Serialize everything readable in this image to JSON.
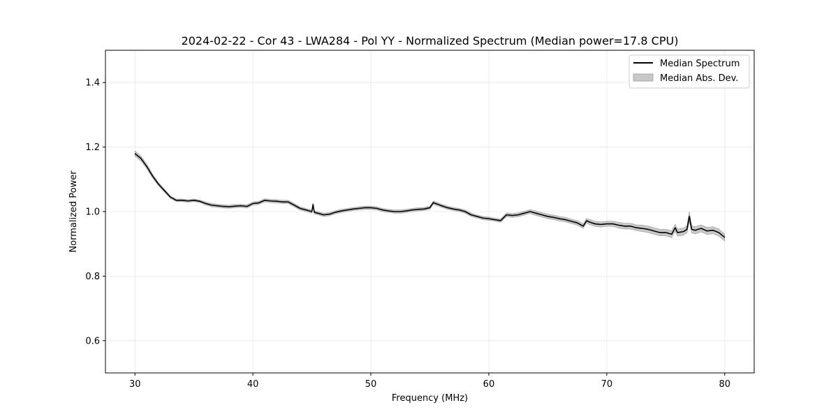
{
  "chart_data": {
    "type": "line",
    "title": "2024-02-22 - Cor 43 - LWA284 - Pol YY - Normalized Spectrum (Median power=17.8 CPU)",
    "xlabel": "Frequency (MHz)",
    "ylabel": "Normalized Power",
    "xlim": [
      27.5,
      82.5
    ],
    "ylim": [
      0.5,
      1.5
    ],
    "xticks": [
      30,
      40,
      50,
      60,
      70,
      80
    ],
    "xtick_labels": [
      "30",
      "40",
      "50",
      "60",
      "70",
      "80"
    ],
    "yticks": [
      0.6,
      0.8,
      1.0,
      1.2,
      1.4
    ],
    "ytick_labels": [
      "0.6",
      "0.8",
      "1.0",
      "1.2",
      "1.4"
    ],
    "grid": true,
    "legend_position": "top-right",
    "series": [
      {
        "name": "Median Spectrum",
        "color": "#000000",
        "x": [
          30.0,
          30.5,
          31.0,
          31.5,
          32.0,
          32.5,
          33.0,
          33.5,
          34.0,
          34.5,
          35.0,
          35.5,
          36.0,
          36.5,
          37.0,
          37.5,
          38.0,
          38.5,
          39.0,
          39.5,
          40.0,
          40.5,
          41.0,
          41.5,
          42.0,
          42.5,
          43.0,
          43.5,
          44.0,
          44.5,
          45.0,
          45.1,
          45.2,
          45.5,
          46.0,
          46.5,
          47.0,
          47.5,
          48.0,
          48.5,
          49.0,
          49.5,
          50.0,
          50.5,
          51.0,
          51.5,
          52.0,
          52.5,
          53.0,
          53.5,
          54.0,
          54.5,
          55.0,
          55.3,
          55.5,
          56.0,
          56.5,
          57.0,
          57.5,
          58.0,
          58.5,
          59.0,
          59.5,
          60.0,
          60.5,
          61.0,
          61.5,
          62.0,
          62.5,
          63.0,
          63.5,
          64.0,
          64.5,
          65.0,
          65.5,
          66.0,
          66.5,
          67.0,
          67.5,
          68.0,
          68.3,
          68.5,
          69.0,
          69.5,
          70.0,
          70.5,
          71.0,
          71.5,
          72.0,
          72.5,
          73.0,
          73.5,
          74.0,
          74.5,
          75.0,
          75.5,
          75.8,
          76.0,
          76.5,
          76.8,
          77.0,
          77.2,
          77.5,
          78.0,
          78.5,
          79.0,
          79.5,
          80.0
        ],
        "values": [
          1.18,
          1.165,
          1.14,
          1.11,
          1.085,
          1.065,
          1.045,
          1.035,
          1.035,
          1.033,
          1.035,
          1.032,
          1.025,
          1.02,
          1.018,
          1.016,
          1.015,
          1.017,
          1.018,
          1.016,
          1.025,
          1.027,
          1.035,
          1.033,
          1.032,
          1.03,
          1.03,
          1.02,
          1.01,
          1.005,
          1.0,
          1.022,
          0.998,
          0.995,
          0.99,
          0.992,
          0.998,
          1.002,
          1.005,
          1.008,
          1.01,
          1.012,
          1.012,
          1.01,
          1.005,
          1.002,
          1.0,
          1.0,
          1.002,
          1.005,
          1.007,
          1.008,
          1.012,
          1.028,
          1.025,
          1.018,
          1.012,
          1.008,
          1.005,
          1.0,
          0.99,
          0.985,
          0.98,
          0.978,
          0.975,
          0.972,
          0.99,
          0.988,
          0.99,
          0.995,
          1.0,
          0.995,
          0.99,
          0.985,
          0.982,
          0.978,
          0.975,
          0.97,
          0.965,
          0.955,
          0.972,
          0.968,
          0.962,
          0.96,
          0.962,
          0.962,
          0.958,
          0.955,
          0.955,
          0.95,
          0.948,
          0.945,
          0.94,
          0.935,
          0.935,
          0.93,
          0.95,
          0.935,
          0.938,
          0.945,
          0.985,
          0.945,
          0.942,
          0.948,
          0.94,
          0.942,
          0.935,
          0.92
        ]
      },
      {
        "name": "Median Abs. Dev.",
        "color": "#c8c8c8",
        "band_halfwidth": [
          0.008,
          0.008,
          0.007,
          0.006,
          0.005,
          0.005,
          0.004,
          0.004,
          0.004,
          0.004,
          0.004,
          0.004,
          0.005,
          0.005,
          0.005,
          0.005,
          0.005,
          0.005,
          0.005,
          0.005,
          0.005,
          0.005,
          0.005,
          0.005,
          0.005,
          0.005,
          0.005,
          0.005,
          0.005,
          0.005,
          0.005,
          0.005,
          0.005,
          0.005,
          0.005,
          0.005,
          0.005,
          0.005,
          0.005,
          0.005,
          0.005,
          0.005,
          0.005,
          0.005,
          0.005,
          0.005,
          0.005,
          0.005,
          0.005,
          0.005,
          0.005,
          0.005,
          0.005,
          0.005,
          0.005,
          0.005,
          0.005,
          0.005,
          0.005,
          0.005,
          0.005,
          0.005,
          0.005,
          0.005,
          0.005,
          0.005,
          0.006,
          0.006,
          0.006,
          0.006,
          0.006,
          0.007,
          0.007,
          0.007,
          0.007,
          0.007,
          0.007,
          0.007,
          0.007,
          0.007,
          0.007,
          0.008,
          0.008,
          0.008,
          0.008,
          0.008,
          0.009,
          0.009,
          0.009,
          0.009,
          0.01,
          0.01,
          0.01,
          0.01,
          0.01,
          0.011,
          0.011,
          0.011,
          0.011,
          0.011,
          0.015,
          0.011,
          0.011,
          0.011,
          0.011,
          0.011,
          0.011,
          0.011
        ]
      }
    ]
  }
}
